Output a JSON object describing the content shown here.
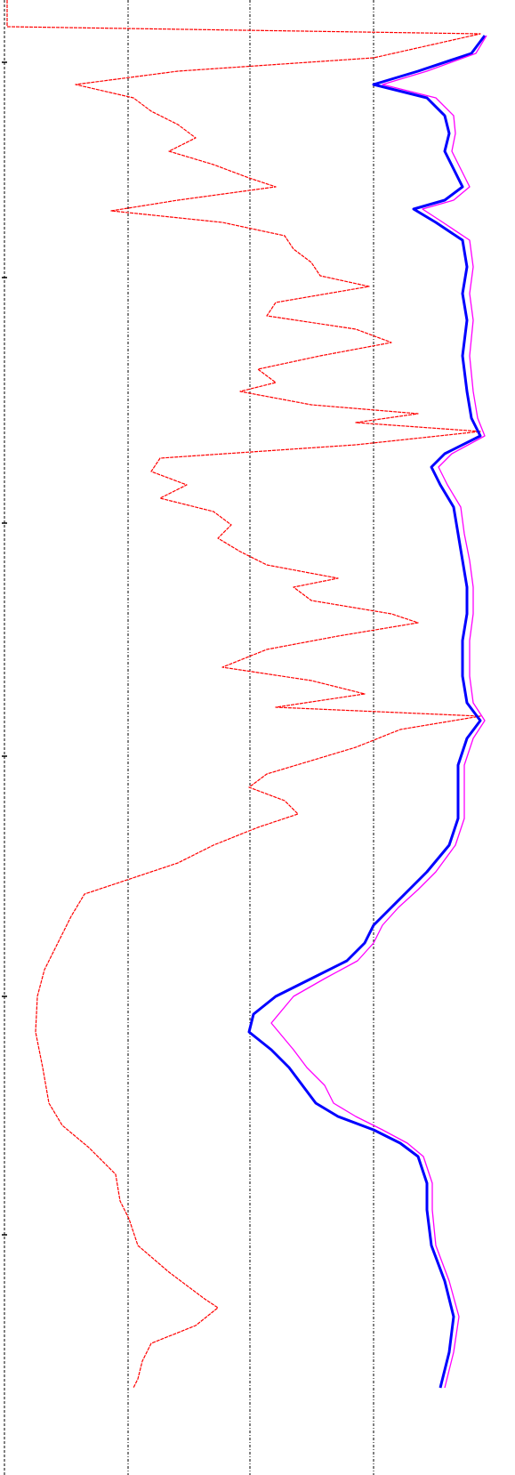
{
  "chart_data": {
    "type": "line",
    "orientation": "vertical",
    "y_inverted": true,
    "grid": true,
    "xlim": [
      6,
      547
    ],
    "xticks": [
      144,
      281,
      420
    ],
    "ylim": [
      0,
      1658
    ],
    "yticks": [
      70,
      312,
      588,
      850,
      1120,
      1388
    ],
    "series": [
      {
        "color": "#ff0000",
        "dashed": true,
        "width": 1.2,
        "depth": [
          0,
          30,
          38,
          65,
          80,
          95,
          110,
          125,
          140,
          155,
          170,
          185,
          200,
          210,
          225,
          237,
          250,
          265,
          280,
          295,
          310,
          322,
          340,
          355,
          370,
          385,
          400,
          415,
          430,
          440,
          455,
          465,
          475,
          485,
          500,
          515,
          530,
          545,
          560,
          575,
          590,
          605,
          620,
          635,
          650,
          660,
          675,
          690,
          700,
          715,
          730,
          750,
          765,
          780,
          795,
          805,
          820,
          840,
          855,
          870,
          885,
          900,
          915,
          930,
          950,
          970,
          990,
          1005,
          1030,
          1060,
          1090,
          1120,
          1160,
          1200,
          1240,
          1265,
          1290,
          1320,
          1350,
          1370,
          1400,
          1430,
          1460,
          1470,
          1490,
          1510,
          1530,
          1550,
          1560
        ],
        "values": [
          8,
          8,
          540,
          420,
          200,
          85,
          150,
          170,
          200,
          220,
          190,
          240,
          280,
          310,
          200,
          125,
          250,
          320,
          330,
          350,
          360,
          415,
          310,
          300,
          400,
          440,
          360,
          290,
          310,
          270,
          350,
          470,
          400,
          540,
          400,
          180,
          170,
          210,
          180,
          240,
          260,
          245,
          270,
          300,
          380,
          330,
          350,
          440,
          470,
          380,
          300,
          250,
          350,
          410,
          310,
          540,
          450,
          400,
          350,
          300,
          280,
          320,
          335,
          290,
          240,
          200,
          140,
          95,
          80,
          65,
          50,
          42,
          40,
          48,
          55,
          70,
          100,
          130,
          135,
          145,
          155,
          190,
          230,
          245,
          220,
          170,
          160,
          155,
          150
        ]
      },
      {
        "color": "#0000ff",
        "dashed": false,
        "width": 3,
        "depth": [
          40,
          60,
          80,
          95,
          110,
          130,
          150,
          170,
          190,
          210,
          225,
          235,
          250,
          270,
          300,
          330,
          360,
          400,
          440,
          470,
          490,
          510,
          525,
          545,
          570,
          600,
          630,
          660,
          690,
          720,
          760,
          790,
          810,
          830,
          860,
          890,
          920,
          950,
          980,
          1000,
          1020,
          1040,
          1060,
          1080,
          1100,
          1120,
          1140,
          1160,
          1180,
          1200,
          1220,
          1240,
          1255,
          1270,
          1285,
          1300,
          1330,
          1360,
          1400,
          1440,
          1480,
          1520,
          1560
        ],
        "values": [
          545,
          530,
          470,
          420,
          480,
          500,
          505,
          500,
          510,
          520,
          500,
          465,
          490,
          520,
          525,
          520,
          525,
          520,
          525,
          530,
          540,
          500,
          485,
          495,
          510,
          515,
          520,
          525,
          525,
          520,
          520,
          525,
          540,
          525,
          515,
          515,
          515,
          505,
          480,
          460,
          440,
          420,
          410,
          390,
          350,
          310,
          285,
          280,
          305,
          325,
          340,
          355,
          380,
          420,
          450,
          470,
          480,
          480,
          485,
          500,
          510,
          505,
          495
        ]
      },
      {
        "color": "#ff00ff",
        "dashed": false,
        "width": 1.3,
        "depth": [
          40,
          60,
          80,
          95,
          110,
          130,
          150,
          170,
          190,
          210,
          225,
          235,
          250,
          270,
          300,
          330,
          360,
          400,
          440,
          470,
          490,
          510,
          525,
          545,
          570,
          600,
          630,
          660,
          690,
          720,
          760,
          790,
          810,
          830,
          860,
          890,
          920,
          950,
          980,
          1000,
          1020,
          1040,
          1060,
          1080,
          1100,
          1120,
          1150,
          1180,
          1200,
          1220,
          1240,
          1255,
          1270,
          1285,
          1300,
          1330,
          1360,
          1400,
          1440,
          1480,
          1520,
          1560
        ],
        "values": [
          547,
          535,
          480,
          430,
          490,
          510,
          512,
          508,
          518,
          528,
          510,
          475,
          498,
          528,
          532,
          528,
          532,
          528,
          532,
          537,
          545,
          508,
          493,
          503,
          518,
          522,
          528,
          532,
          532,
          528,
          528,
          532,
          545,
          532,
          522,
          522,
          522,
          512,
          490,
          470,
          448,
          430,
          420,
          402,
          365,
          330,
          305,
          330,
          345,
          365,
          375,
          400,
          430,
          458,
          476,
          486,
          486,
          490,
          505,
          516,
          510,
          500
        ]
      }
    ]
  }
}
